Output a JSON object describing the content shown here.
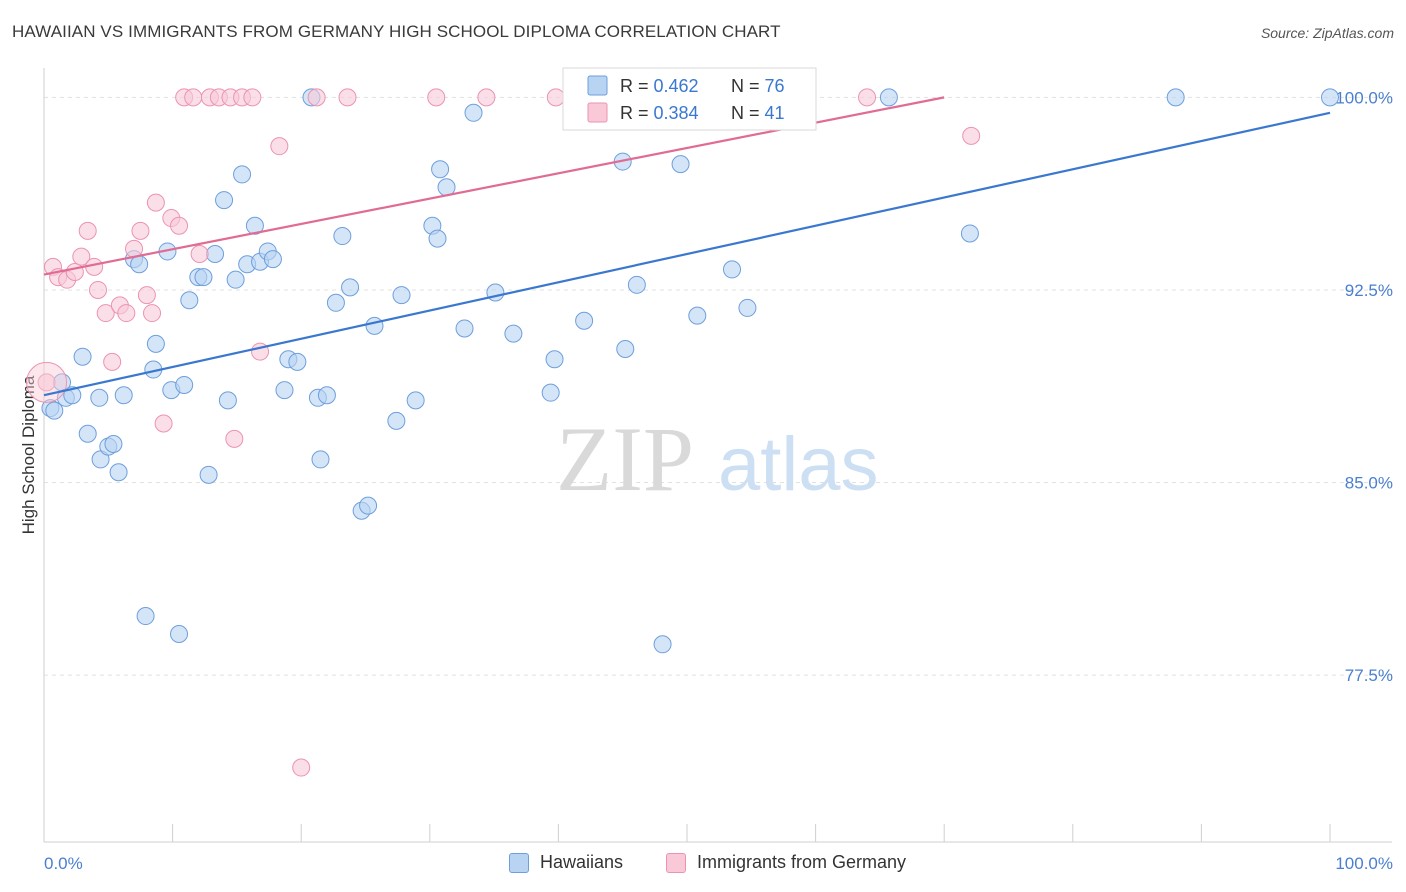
{
  "title": "HAWAIIAN VS IMMIGRANTS FROM GERMANY HIGH SCHOOL DIPLOMA CORRELATION CHART",
  "source": "Source: ZipAtlas.com",
  "watermark": {
    "zip": "ZIP",
    "atlas": "atlas"
  },
  "colors": {
    "blue_fill": "#b9d3f3",
    "blue_stroke": "#6d9fdc",
    "blue_line": "#3a78d0",
    "pink_fill": "#f9c9d8",
    "pink_stroke": "#ec93b1",
    "pink_line": "#e06b93",
    "axis_text": "#4a7fcf",
    "grid": "#e1e1e1"
  },
  "legend_top": {
    "entries": [
      {
        "r_label": "R = ",
        "r_value": "0.462",
        "n_label": "N = ",
        "n_value": "76"
      },
      {
        "r_label": "R = ",
        "r_value": "0.384",
        "n_label": "N = ",
        "n_value": "41"
      }
    ]
  },
  "legend_bottom": {
    "entries": [
      {
        "name": "Hawaiians"
      },
      {
        "name": "Immigrants from Germany"
      }
    ]
  },
  "chart_data": {
    "type": "scatter",
    "title": "HAWAIIAN VS IMMIGRANTS FROM GERMANY HIGH SCHOOL DIPLOMA CORRELATION CHART",
    "xlabel": "",
    "ylabel": "High School Diploma",
    "xlim": [
      0,
      100
    ],
    "ylim": [
      71.0,
      101.3
    ],
    "x_tick_labels": [
      "0.0%",
      "100.0%"
    ],
    "y_ticks": [
      77.5,
      85.0,
      92.5,
      100.0
    ],
    "y_tick_labels": [
      "77.5%",
      "85.0%",
      "92.5%",
      "100.0%"
    ],
    "grid": true,
    "legend_placement": "top-center",
    "series": [
      {
        "name": "Hawaiians",
        "r": 0.462,
        "n": 76,
        "trend": {
          "x": [
            0,
            100
          ],
          "y": [
            88.4,
            99.4
          ]
        },
        "points": [
          [
            0.5,
            87.9
          ],
          [
            0.8,
            87.8
          ],
          [
            1.4,
            88.9
          ],
          [
            1.7,
            88.3
          ],
          [
            2.2,
            88.4
          ],
          [
            3.0,
            89.9
          ],
          [
            3.4,
            86.9
          ],
          [
            4.3,
            88.3
          ],
          [
            4.4,
            85.9
          ],
          [
            5.0,
            86.4
          ],
          [
            5.4,
            86.5
          ],
          [
            5.8,
            85.4
          ],
          [
            6.2,
            88.4
          ],
          [
            7.0,
            93.7
          ],
          [
            7.4,
            93.5
          ],
          [
            7.9,
            79.8
          ],
          [
            8.5,
            89.4
          ],
          [
            8.7,
            90.4
          ],
          [
            9.6,
            94.0
          ],
          [
            9.9,
            88.6
          ],
          [
            10.5,
            79.1
          ],
          [
            10.9,
            88.8
          ],
          [
            11.3,
            92.1
          ],
          [
            12.0,
            93.0
          ],
          [
            12.4,
            93.0
          ],
          [
            12.8,
            85.3
          ],
          [
            13.3,
            93.9
          ],
          [
            14.0,
            96.0
          ],
          [
            14.3,
            88.2
          ],
          [
            14.9,
            92.9
          ],
          [
            15.4,
            97.0
          ],
          [
            15.8,
            93.5
          ],
          [
            16.4,
            95.0
          ],
          [
            16.8,
            93.6
          ],
          [
            17.4,
            94.0
          ],
          [
            17.8,
            93.7
          ],
          [
            18.7,
            88.6
          ],
          [
            19.0,
            89.8
          ],
          [
            19.7,
            89.7
          ],
          [
            20.8,
            100.0
          ],
          [
            21.3,
            88.3
          ],
          [
            21.5,
            85.9
          ],
          [
            22.0,
            88.4
          ],
          [
            22.7,
            92.0
          ],
          [
            23.2,
            94.6
          ],
          [
            23.8,
            92.6
          ],
          [
            24.7,
            83.9
          ],
          [
            25.2,
            84.1
          ],
          [
            25.7,
            91.1
          ],
          [
            27.4,
            87.4
          ],
          [
            27.8,
            92.3
          ],
          [
            28.9,
            88.2
          ],
          [
            30.2,
            95.0
          ],
          [
            30.6,
            94.5
          ],
          [
            30.8,
            97.2
          ],
          [
            31.3,
            96.5
          ],
          [
            32.7,
            91.0
          ],
          [
            33.4,
            99.4
          ],
          [
            35.1,
            92.4
          ],
          [
            36.5,
            90.8
          ],
          [
            39.4,
            88.5
          ],
          [
            39.7,
            89.8
          ],
          [
            42.0,
            91.3
          ],
          [
            45.0,
            97.5
          ],
          [
            45.2,
            90.2
          ],
          [
            46.1,
            92.7
          ],
          [
            48.1,
            78.7
          ],
          [
            48.9,
            100.0
          ],
          [
            49.5,
            97.4
          ],
          [
            50.8,
            91.5
          ],
          [
            53.5,
            93.3
          ],
          [
            54.7,
            91.8
          ],
          [
            65.7,
            100.0
          ],
          [
            72.0,
            94.7
          ],
          [
            88.0,
            100.0
          ],
          [
            100.0,
            100.0
          ]
        ]
      },
      {
        "name": "Immigrants from Germany",
        "r": 0.384,
        "n": 41,
        "trend": {
          "x": [
            0,
            70
          ],
          "y": [
            93.1,
            100.0
          ]
        },
        "points": [
          [
            0.2,
            88.9
          ],
          [
            0.7,
            93.4
          ],
          [
            1.1,
            93.0
          ],
          [
            1.8,
            92.9
          ],
          [
            2.4,
            93.2
          ],
          [
            2.9,
            93.8
          ],
          [
            3.4,
            94.8
          ],
          [
            3.9,
            93.4
          ],
          [
            4.2,
            92.5
          ],
          [
            4.8,
            91.6
          ],
          [
            5.3,
            89.7
          ],
          [
            5.9,
            91.9
          ],
          [
            6.4,
            91.6
          ],
          [
            7.0,
            94.1
          ],
          [
            7.5,
            94.8
          ],
          [
            8.0,
            92.3
          ],
          [
            8.4,
            91.6
          ],
          [
            8.7,
            95.9
          ],
          [
            9.3,
            87.3
          ],
          [
            9.9,
            95.3
          ],
          [
            10.5,
            95.0
          ],
          [
            10.9,
            100.0
          ],
          [
            11.6,
            100.0
          ],
          [
            12.1,
            93.9
          ],
          [
            12.9,
            100.0
          ],
          [
            13.6,
            100.0
          ],
          [
            14.5,
            100.0
          ],
          [
            14.8,
            86.7
          ],
          [
            15.4,
            100.0
          ],
          [
            16.2,
            100.0
          ],
          [
            16.8,
            90.1
          ],
          [
            18.3,
            98.1
          ],
          [
            20.0,
            73.9
          ],
          [
            21.2,
            100.0
          ],
          [
            23.6,
            100.0
          ],
          [
            30.5,
            100.0
          ],
          [
            34.4,
            100.0
          ],
          [
            39.8,
            100.0
          ],
          [
            44.8,
            100.0
          ],
          [
            64.0,
            100.0
          ],
          [
            72.1,
            98.5
          ]
        ]
      }
    ]
  }
}
